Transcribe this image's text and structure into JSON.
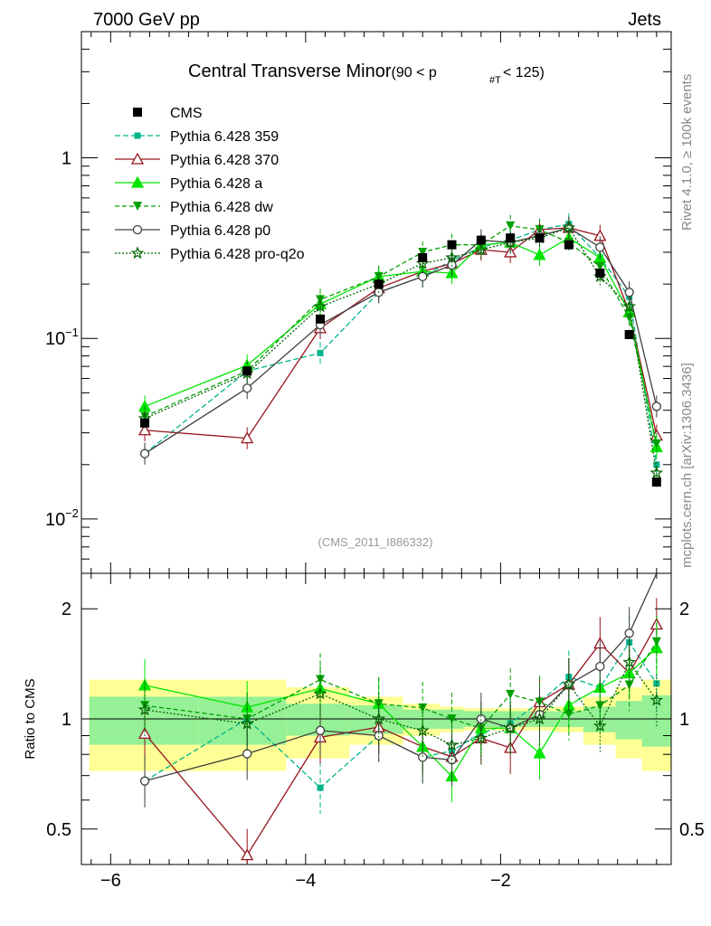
{
  "header": {
    "left": "7000 GeV pp",
    "right": "Jets"
  },
  "side_text": {
    "rivet": "Rivet 4.1.0, ≥ 100k events",
    "mcplots": "mcplots.cern.ch [arXiv:1306.3436]"
  },
  "title": {
    "main": "Central Transverse Minor",
    "sub": "(90 < p",
    "sub_index": "#T",
    "sub_tail": " < 125)"
  },
  "analysis_label": "(CMS_2011_I886332)",
  "ratio_ylabel": "Ratio to CMS",
  "colors": {
    "cms": "#000000",
    "p359": "#00b48c",
    "p370": "#96141e",
    "pa": "#00e600",
    "pdw": "#00a000",
    "pp0": "#404040",
    "pq2o": "#006400",
    "band_inner": "#96f096",
    "band_outer": "#ffff96"
  },
  "chart_data": {
    "type": "scatter",
    "x_range": [
      -6.3,
      -0.25
    ],
    "x_ticks": [
      -6,
      -4,
      -2
    ],
    "x_tick_labels": [
      "−6",
      "−4",
      "−2"
    ],
    "main_ylim": [
      0.005,
      5
    ],
    "main_yscale": "log",
    "main_y_ticks": [
      {
        "v": 1,
        "label": "1"
      },
      {
        "v": 0.1,
        "label": "10",
        "exp": "−1"
      },
      {
        "v": 0.01,
        "label": "10",
        "exp": "−2"
      }
    ],
    "ratio_ylim": [
      0.4,
      2.5
    ],
    "ratio_yscale": "log",
    "ratio_y_ticks": [
      {
        "v": 0.5,
        "label": "0.5"
      },
      {
        "v": 1,
        "label": "1"
      },
      {
        "v": 2,
        "label": "2"
      }
    ],
    "x": [
      -5.65,
      -4.6,
      -3.85,
      -3.25,
      -2.8,
      -2.5,
      -2.2,
      -1.9,
      -1.6,
      -1.3,
      -0.98,
      -0.68,
      -0.4
    ],
    "bin_edges": [
      -6.22,
      -5.1,
      -4.2,
      -3.55,
      -3.0,
      -2.62,
      -2.38,
      -2.06,
      -1.75,
      -1.45,
      -1.15,
      -0.82,
      -0.55,
      -0.25
    ],
    "legend": [
      "CMS",
      "Pythia 6.428 359",
      "Pythia 6.428 370",
      "Pythia 6.428 a",
      "Pythia 6.428 dw",
      "Pythia 6.428 p0",
      "Pythia 6.428 pro-q2o"
    ],
    "data": {
      "name": "CMS",
      "values": [
        0.034,
        0.066,
        0.128,
        0.2,
        0.28,
        0.33,
        0.35,
        0.36,
        0.36,
        0.33,
        0.23,
        0.105,
        0.016
      ]
    },
    "band": {
      "inner": [
        0.15,
        0.15,
        0.1,
        0.09,
        0.06,
        0.06,
        0.05,
        0.05,
        0.05,
        0.05,
        0.08,
        0.12,
        0.16
      ],
      "outer": [
        0.28,
        0.28,
        0.22,
        0.15,
        0.1,
        0.08,
        0.07,
        0.07,
        0.07,
        0.08,
        0.15,
        0.22,
        0.28
      ]
    },
    "series": [
      {
        "name": "Pythia 6.428 359",
        "key": "p359",
        "marker": "square",
        "dash": "6,3",
        "values": [
          0.023,
          0.066,
          0.083,
          0.18,
          0.22,
          0.27,
          0.32,
          0.35,
          0.4,
          0.43,
          0.28,
          0.17,
          0.02
        ]
      },
      {
        "name": "Pythia 6.428 370",
        "key": "p370",
        "marker": "triangle-open",
        "dash": "",
        "values": [
          0.031,
          0.028,
          0.114,
          0.19,
          0.235,
          0.26,
          0.31,
          0.3,
          0.4,
          0.41,
          0.37,
          0.14,
          0.029
        ]
      },
      {
        "name": "Pythia 6.428 a",
        "key": "pa",
        "marker": "triangle",
        "dash": "",
        "values": [
          0.042,
          0.071,
          0.155,
          0.22,
          0.235,
          0.23,
          0.33,
          0.34,
          0.29,
          0.36,
          0.28,
          0.14,
          0.025
        ]
      },
      {
        "name": "Pythia 6.428 dw",
        "key": "pdw",
        "marker": "triangle-down",
        "dash": "5,3",
        "values": [
          0.037,
          0.066,
          0.164,
          0.22,
          0.3,
          0.33,
          0.33,
          0.42,
          0.4,
          0.34,
          0.25,
          0.13,
          0.026
        ]
      },
      {
        "name": "Pythia 6.428 p0",
        "key": "pp0",
        "marker": "circle-open",
        "dash": "",
        "values": [
          0.023,
          0.053,
          0.119,
          0.18,
          0.22,
          0.255,
          0.35,
          0.34,
          0.37,
          0.41,
          0.32,
          0.18,
          0.042
        ]
      },
      {
        "name": "Pythia 6.428 pro-q2o",
        "key": "pq2o",
        "marker": "star",
        "dash": "2,2",
        "values": [
          0.036,
          0.064,
          0.15,
          0.2,
          0.26,
          0.28,
          0.31,
          0.34,
          0.36,
          0.41,
          0.22,
          0.15,
          0.018
        ]
      }
    ]
  }
}
